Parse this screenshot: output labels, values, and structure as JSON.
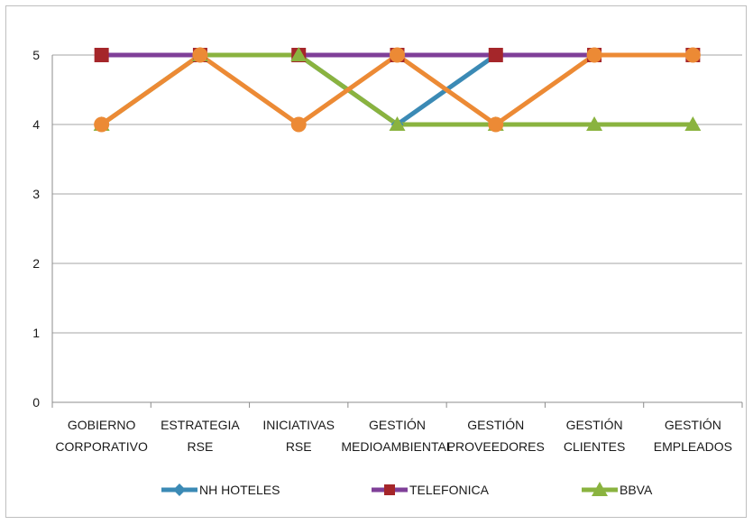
{
  "chart_data": {
    "type": "line",
    "title": "",
    "xlabel": "",
    "ylabel": "",
    "ylim": [
      0,
      5
    ],
    "yticks": [
      0,
      1,
      2,
      3,
      4,
      5
    ],
    "grid": true,
    "legend_position": "bottom",
    "categories": [
      [
        "GOBIERNO",
        "CORPORATIVO"
      ],
      [
        "ESTRATEGIA",
        "RSE"
      ],
      [
        "INICIATIVAS",
        "RSE"
      ],
      [
        "GESTIÓN",
        "MEDIOAMBIENTAL"
      ],
      [
        "GESTIÓN",
        "PROVEEDORES"
      ],
      [
        "GESTIÓN",
        "CLIENTES"
      ],
      [
        "GESTIÓN",
        "EMPLEADOS"
      ]
    ],
    "series": [
      {
        "name": "NH HOTELES",
        "color": "#3b8ab5",
        "marker": "diamond",
        "values": [
          5,
          5,
          5,
          4,
          5,
          5,
          5
        ]
      },
      {
        "name": "TELEFONICA",
        "color": "#7f3f98",
        "marker_color": "#a5262a",
        "marker": "square",
        "values": [
          5,
          5,
          5,
          5,
          5,
          5,
          5
        ]
      },
      {
        "name": "BBVA",
        "color": "#8ab33f",
        "marker": "triangle",
        "values": [
          4,
          5,
          5,
          4,
          4,
          4,
          4
        ]
      },
      {
        "name": "",
        "color": "#ec8a35",
        "marker": "circle",
        "values": [
          4,
          5,
          4,
          5,
          4,
          5,
          5
        ]
      }
    ]
  }
}
